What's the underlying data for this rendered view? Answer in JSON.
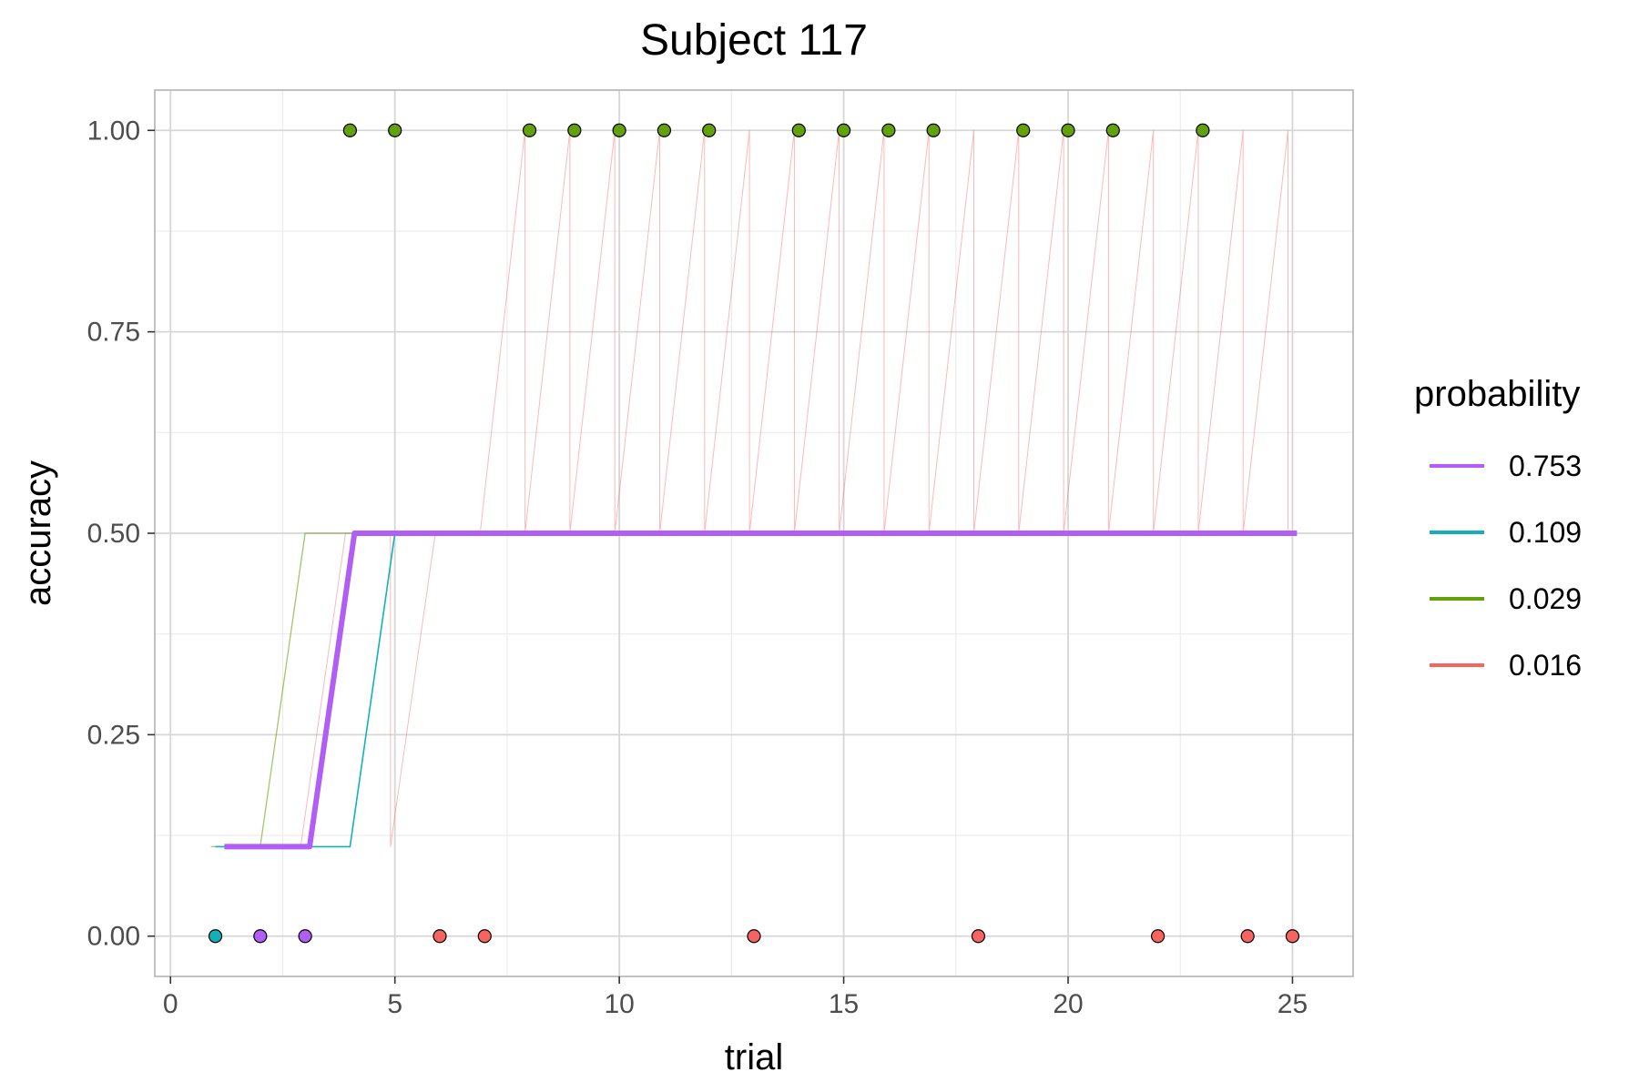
{
  "chart_data": {
    "type": "line",
    "title": "Subject 117",
    "xlabel": "trial",
    "ylabel": "accuracy",
    "xlim": [
      -0.35,
      26.35
    ],
    "ylim": [
      -0.05,
      1.05
    ],
    "x_ticks": [
      0,
      5,
      10,
      15,
      20,
      25
    ],
    "x_tick_labels": [
      "0",
      "5",
      "10",
      "15",
      "20",
      "25"
    ],
    "y_ticks": [
      0,
      0.25,
      0.5,
      0.75,
      1.0
    ],
    "y_tick_labels": [
      "0.00",
      "0.25",
      "0.50",
      "0.75",
      "1.00"
    ],
    "grid": true,
    "legend_title": "probability",
    "legend_position": "right",
    "series": [
      {
        "name": "0.753",
        "color": "#B15EF6",
        "line_points": [
          [
            1.2,
            0.111
          ],
          [
            3.1,
            0.111
          ],
          [
            4.1,
            0.5
          ],
          [
            25.1,
            0.5
          ]
        ],
        "points": [
          [
            2,
            0
          ],
          [
            3,
            0
          ]
        ]
      },
      {
        "name": "0.109",
        "color": "#13B1B7",
        "line_points": [
          [
            1.0,
            0.111
          ],
          [
            4.0,
            0.111
          ],
          [
            5.0,
            0.5
          ],
          [
            25.0,
            0.5
          ]
        ],
        "points": [
          [
            1,
            0
          ]
        ]
      },
      {
        "name": "0.029",
        "color": "#63A10A",
        "line_points": [
          [
            0.9,
            0.111
          ],
          [
            2.0,
            0.111
          ],
          [
            3.0,
            0.5
          ],
          [
            25.0,
            0.5
          ]
        ],
        "points": [
          [
            4,
            1
          ],
          [
            5,
            1
          ],
          [
            8,
            1
          ],
          [
            9,
            1
          ],
          [
            10,
            1
          ],
          [
            11,
            1
          ],
          [
            12,
            1
          ],
          [
            14,
            1
          ],
          [
            15,
            1
          ],
          [
            16,
            1
          ],
          [
            17,
            1
          ],
          [
            19,
            1
          ],
          [
            20,
            1
          ],
          [
            21,
            1
          ],
          [
            23,
            1
          ]
        ]
      },
      {
        "name": "0.016",
        "color": "#F7635F",
        "line_points": [
          [
            2.9,
            0.111
          ],
          [
            3.9,
            0.5
          ],
          [
            4.9,
            0.5
          ],
          [
            4.9,
            0.111
          ],
          [
            5.9,
            0.5
          ],
          [
            6.9,
            0.5
          ],
          [
            7.9,
            1
          ],
          [
            7.9,
            0.5
          ],
          [
            8.9,
            1
          ],
          [
            8.9,
            0.5
          ],
          [
            9.9,
            1
          ],
          [
            9.9,
            0.5
          ],
          [
            10.9,
            1
          ],
          [
            10.9,
            0.5
          ],
          [
            11.9,
            1
          ],
          [
            11.9,
            0.5
          ],
          [
            12.9,
            1
          ],
          [
            12.9,
            0.5
          ],
          [
            13.9,
            1
          ],
          [
            13.9,
            0.5
          ],
          [
            14.9,
            1
          ],
          [
            14.9,
            0.5
          ],
          [
            15.9,
            1
          ],
          [
            15.9,
            0.5
          ],
          [
            16.9,
            1
          ],
          [
            16.9,
            0.5
          ],
          [
            17.9,
            1
          ],
          [
            17.9,
            0.5
          ],
          [
            18.9,
            1
          ],
          [
            18.9,
            0.5
          ],
          [
            19.9,
            1
          ],
          [
            19.9,
            0.5
          ],
          [
            20.9,
            1
          ],
          [
            20.9,
            0.5
          ],
          [
            21.9,
            1
          ],
          [
            21.9,
            0.5
          ],
          [
            22.9,
            1
          ],
          [
            22.9,
            0.5
          ],
          [
            23.9,
            1
          ],
          [
            23.9,
            0.5
          ],
          [
            24.9,
            1
          ],
          [
            24.9,
            0.5
          ]
        ],
        "points": [
          [
            6,
            0
          ],
          [
            7,
            0
          ],
          [
            13,
            0
          ],
          [
            18,
            0
          ],
          [
            22,
            0
          ],
          [
            24,
            0
          ],
          [
            25,
            0
          ]
        ]
      }
    ]
  }
}
